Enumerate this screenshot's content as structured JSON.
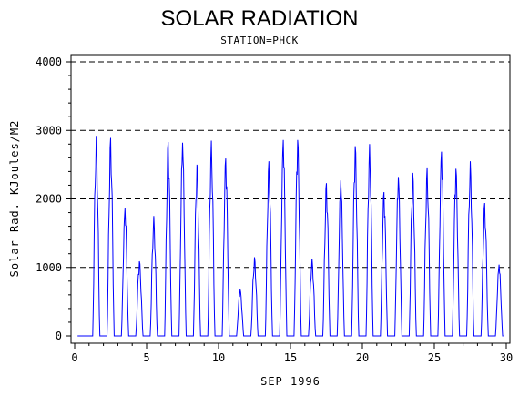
{
  "chart_data": {
    "type": "line",
    "title": "SOLAR RADIATION",
    "subtitle": "STATION=PHCK",
    "xlabel": "SEP 1996",
    "ylabel": "Solar Rad. KJoules/M2",
    "xlim": [
      0,
      30
    ],
    "ylim": [
      0,
      4000
    ],
    "x_ticks": [
      0,
      5,
      10,
      15,
      20,
      25,
      30
    ],
    "y_ticks": [
      0,
      1000,
      2000,
      3000,
      4000
    ],
    "grid": "horizontal-dashed",
    "series_color": "#0000ff",
    "daily_peaks": [
      [
        1.45,
        2920
      ],
      [
        2.45,
        2890
      ],
      [
        3.5,
        1860
      ],
      [
        4.45,
        1090
      ],
      [
        5.5,
        1750
      ],
      [
        6.45,
        2830
      ],
      [
        7.45,
        2820
      ],
      [
        8.45,
        2500
      ],
      [
        9.45,
        2850
      ],
      [
        10.5,
        2590
      ],
      [
        11.45,
        680
      ],
      [
        12.45,
        1150
      ],
      [
        13.5,
        2550
      ],
      [
        14.45,
        2860
      ],
      [
        15.45,
        2860
      ],
      [
        16.45,
        1130
      ],
      [
        17.5,
        2230
      ],
      [
        18.45,
        2270
      ],
      [
        19.45,
        2770
      ],
      [
        20.45,
        2800
      ],
      [
        21.5,
        2100
      ],
      [
        22.45,
        2320
      ],
      [
        23.45,
        2380
      ],
      [
        24.45,
        2460
      ],
      [
        25.45,
        2690
      ],
      [
        26.5,
        2440
      ],
      [
        27.45,
        2550
      ],
      [
        28.45,
        1940
      ],
      [
        29.5,
        1040
      ]
    ]
  }
}
